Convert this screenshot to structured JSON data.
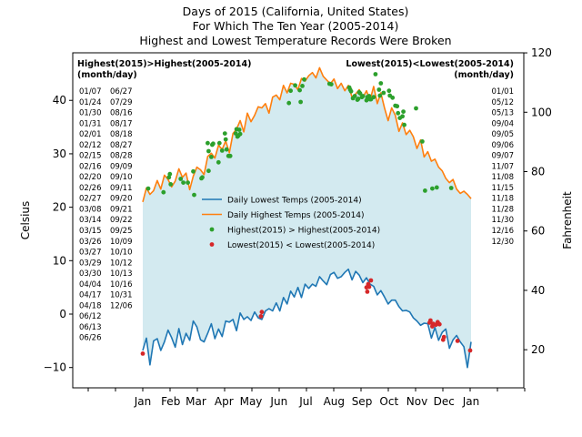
{
  "chart_data": {
    "type": "line",
    "title_lines": [
      "Days of 2015 (California, United States)",
      "For Which The Ten Year (2005-2014)",
      "Highest and Lowest Temperature Records Were Broken"
    ],
    "xlabel": "",
    "ylabel": "Celsius",
    "ylabel_right": "Fahrenheit",
    "ylim": [
      -13.8,
      48.9
    ],
    "yticks": [
      -10,
      0,
      10,
      20,
      30,
      40
    ],
    "yticks_right": [
      20,
      40,
      60,
      80,
      100,
      120
    ],
    "month_labels": [
      "Jan",
      "Feb",
      "Mar",
      "Apr",
      "May",
      "Jun",
      "Jul",
      "Aug",
      "Sep",
      "Oct",
      "Nov",
      "Dec",
      "Jan"
    ],
    "legend_placement": "center",
    "fill_color": "#d3eaf0",
    "series": [
      {
        "name": "Daily Lowest Temps (2005-2014)",
        "color": "#1f77b4",
        "x_day": [
          1,
          5,
          9,
          13,
          17,
          21,
          25,
          29,
          33,
          37,
          41,
          45,
          49,
          53,
          57,
          61,
          65,
          69,
          73,
          77,
          81,
          85,
          89,
          93,
          97,
          101,
          105,
          109,
          113,
          117,
          121,
          125,
          129,
          133,
          137,
          141,
          145,
          149,
          153,
          157,
          161,
          165,
          169,
          173,
          177,
          181,
          185,
          189,
          193,
          197,
          201,
          205,
          209,
          213,
          217,
          221,
          225,
          229,
          233,
          237,
          241,
          245,
          249,
          253,
          257,
          261,
          265,
          269,
          273,
          277,
          281,
          285,
          289,
          293,
          297,
          301,
          305,
          309,
          313,
          317,
          321,
          325,
          329,
          333,
          337,
          341,
          345,
          349,
          353,
          357,
          361,
          365
        ],
        "values": [
          -6.8,
          -4.5,
          -9.5,
          -5.0,
          -4.6,
          -6.8,
          -5.2,
          -3.0,
          -4.4,
          -6.2,
          -2.7,
          -5.7,
          -3.6,
          -4.9,
          -1.3,
          -2.4,
          -4.8,
          -5.2,
          -3.6,
          -1.8,
          -4.6,
          -2.8,
          -4.2,
          -1.3,
          -1.5,
          -1.0,
          -3.1,
          0.2,
          -1.0,
          -0.5,
          -1.2,
          0.4,
          -0.7,
          -1.0,
          0.6,
          1.0,
          0.6,
          2.1,
          0.6,
          3.1,
          1.9,
          4.3,
          3.2,
          5.0,
          3.1,
          5.6,
          4.8,
          5.6,
          5.2,
          7.0,
          6.2,
          5.5,
          7.4,
          7.8,
          6.7,
          7.0,
          7.8,
          8.4,
          6.4,
          8.0,
          7.3,
          5.9,
          6.8,
          5.6,
          5.2,
          3.6,
          4.4,
          3.2,
          1.9,
          2.6,
          2.6,
          1.4,
          0.6,
          0.7,
          0.4,
          -0.7,
          -1.3,
          -2.1,
          -1.7,
          -1.8,
          -4.5,
          -2.5,
          -4.9,
          -3.4,
          -2.8,
          -6.4,
          -4.8,
          -4.0,
          -5.2,
          -6.1,
          -10.0,
          -5.2
        ]
      },
      {
        "name": "Daily Highest Temps (2005-2014)",
        "color": "#ff7f0e",
        "x_day": [
          1,
          5,
          9,
          13,
          17,
          21,
          25,
          29,
          33,
          37,
          41,
          45,
          49,
          53,
          57,
          61,
          65,
          69,
          73,
          77,
          81,
          85,
          89,
          93,
          97,
          101,
          105,
          109,
          113,
          117,
          121,
          125,
          129,
          133,
          137,
          141,
          145,
          149,
          153,
          157,
          161,
          165,
          169,
          173,
          177,
          181,
          185,
          189,
          193,
          197,
          201,
          205,
          209,
          213,
          217,
          221,
          225,
          229,
          233,
          237,
          241,
          245,
          249,
          253,
          257,
          261,
          265,
          269,
          273,
          277,
          281,
          285,
          289,
          293,
          297,
          301,
          305,
          309,
          313,
          317,
          321,
          325,
          329,
          333,
          337,
          341,
          345,
          349,
          353,
          357,
          361,
          365
        ],
        "values": [
          21.0,
          23.6,
          22.4,
          23.1,
          25.0,
          23.4,
          26.0,
          25.2,
          23.8,
          24.9,
          27.2,
          25.6,
          26.4,
          23.3,
          25.8,
          27.5,
          27.0,
          26.1,
          29.5,
          30.1,
          29.2,
          31.6,
          30.8,
          32.4,
          30.2,
          33.8,
          34.6,
          36.2,
          34.1,
          37.6,
          36.0,
          37.2,
          38.8,
          38.6,
          39.4,
          37.6,
          40.6,
          41.0,
          40.1,
          42.8,
          41.4,
          43.2,
          43.0,
          42.0,
          44.1,
          43.6,
          44.6,
          45.2,
          44.2,
          46.1,
          44.5,
          43.8,
          43.1,
          44.0,
          42.2,
          43.2,
          41.8,
          42.8,
          40.6,
          41.2,
          42.0,
          40.5,
          41.8,
          40.0,
          42.6,
          39.4,
          41.4,
          38.6,
          36.2,
          38.6,
          37.2,
          34.2,
          35.8,
          33.6,
          34.4,
          33.2,
          31.0,
          32.6,
          29.4,
          30.4,
          28.6,
          29.0,
          27.5,
          26.8,
          25.4,
          24.6,
          25.2,
          23.4,
          22.6,
          23.0,
          22.4,
          21.6
        ]
      },
      {
        "name": "Highest(2015) > Highest(2005-2014)",
        "type": "scatter",
        "color": "#2ca02c",
        "x_day": [
          7,
          24,
          30,
          31,
          32,
          43,
          46,
          51,
          57,
          58,
          66,
          67,
          73,
          74,
          74,
          77,
          78,
          79,
          85,
          86,
          89,
          92,
          93,
          94,
          96,
          97,
          98,
          104,
          105,
          106,
          107,
          108,
          109,
          163,
          165,
          170,
          175,
          176,
          178,
          180,
          208,
          210,
          230,
          231,
          232,
          234,
          236,
          239,
          240,
          241,
          242,
          244,
          245,
          249,
          250,
          252,
          253,
          254,
          257,
          259,
          263,
          264,
          265,
          268,
          274,
          275,
          278,
          281,
          283,
          284,
          286,
          289,
          290,
          291,
          304,
          311,
          314,
          322,
          327,
          343
        ],
        "values": [
          23.5,
          22.8,
          25.6,
          26.2,
          24.3,
          25.3,
          24.6,
          24.6,
          26.7,
          22.3,
          25.4,
          25.6,
          32.0,
          30.5,
          26.8,
          29.4,
          31.7,
          31.9,
          28.4,
          32.0,
          30.6,
          33.8,
          32.7,
          30.8,
          29.6,
          29.6,
          29.6,
          33.8,
          34.6,
          33.2,
          33.4,
          34.5,
          33.7,
          39.5,
          41.8,
          42.8,
          41.9,
          39.7,
          42.7,
          43.9,
          43.1,
          43.0,
          42.4,
          42.0,
          41.7,
          40.4,
          40.8,
          40.1,
          40.3,
          41.5,
          41.3,
          40.6,
          40.8,
          40.0,
          40.6,
          40.8,
          40.2,
          40.2,
          40.6,
          44.9,
          42.0,
          40.9,
          43.2,
          41.4,
          41.8,
          40.9,
          40.5,
          39.0,
          38.9,
          37.6,
          36.7,
          37.0,
          37.9,
          35.4,
          38.5,
          32.3,
          23.1,
          23.5,
          23.7,
          23.6
        ]
      },
      {
        "name": "Lowest(2015) < Lowest(2005-2014)",
        "type": "scatter",
        "color": "#d62728",
        "x_day": [
          1,
          132,
          133,
          249,
          250,
          251,
          252,
          254,
          319,
          320,
          322,
          323,
          326,
          328,
          330,
          334,
          335,
          350,
          364
        ],
        "values": [
          -7.4,
          -0.4,
          0.4,
          5.0,
          4.2,
          5.6,
          5.1,
          6.3,
          -1.6,
          -1.2,
          -2.3,
          -1.8,
          -2.0,
          -1.5,
          -1.9,
          -4.8,
          -4.3,
          -5.0,
          -6.8
        ]
      }
    ],
    "annotations": {
      "highs_title": "Highest(2015)>Highest(2005-2014)",
      "highs_subtitle": "(month/day)",
      "highs_col1": [
        "01/07",
        "01/24",
        "01/30",
        "01/31",
        "02/01",
        "02/12",
        "02/15",
        "02/16",
        "02/20",
        "02/26",
        "02/27",
        "03/08",
        "03/14",
        "03/15",
        "03/26",
        "03/27",
        "03/29",
        "03/30",
        "04/04",
        "04/17",
        "04/18",
        "06/12",
        "06/13",
        "06/26"
      ],
      "highs_col2": [
        "06/27",
        "07/29",
        "08/16",
        "08/17",
        "08/18",
        "08/27",
        "08/28",
        "09/09",
        "09/10",
        "09/11",
        "09/20",
        "09/21",
        "09/22",
        "09/25",
        "10/09",
        "10/10",
        "10/12",
        "10/13",
        "10/16",
        "10/31",
        "12/06"
      ],
      "lows_title": "Lowest(2015)<Lowest(2005-2014)",
      "lows_subtitle": "(month/day)",
      "lows_col": [
        "01/01",
        "05/12",
        "05/13",
        "09/04",
        "09/05",
        "09/06",
        "09/07",
        "11/07",
        "11/08",
        "11/15",
        "11/18",
        "11/28",
        "11/30",
        "12/16",
        "12/30"
      ]
    }
  }
}
